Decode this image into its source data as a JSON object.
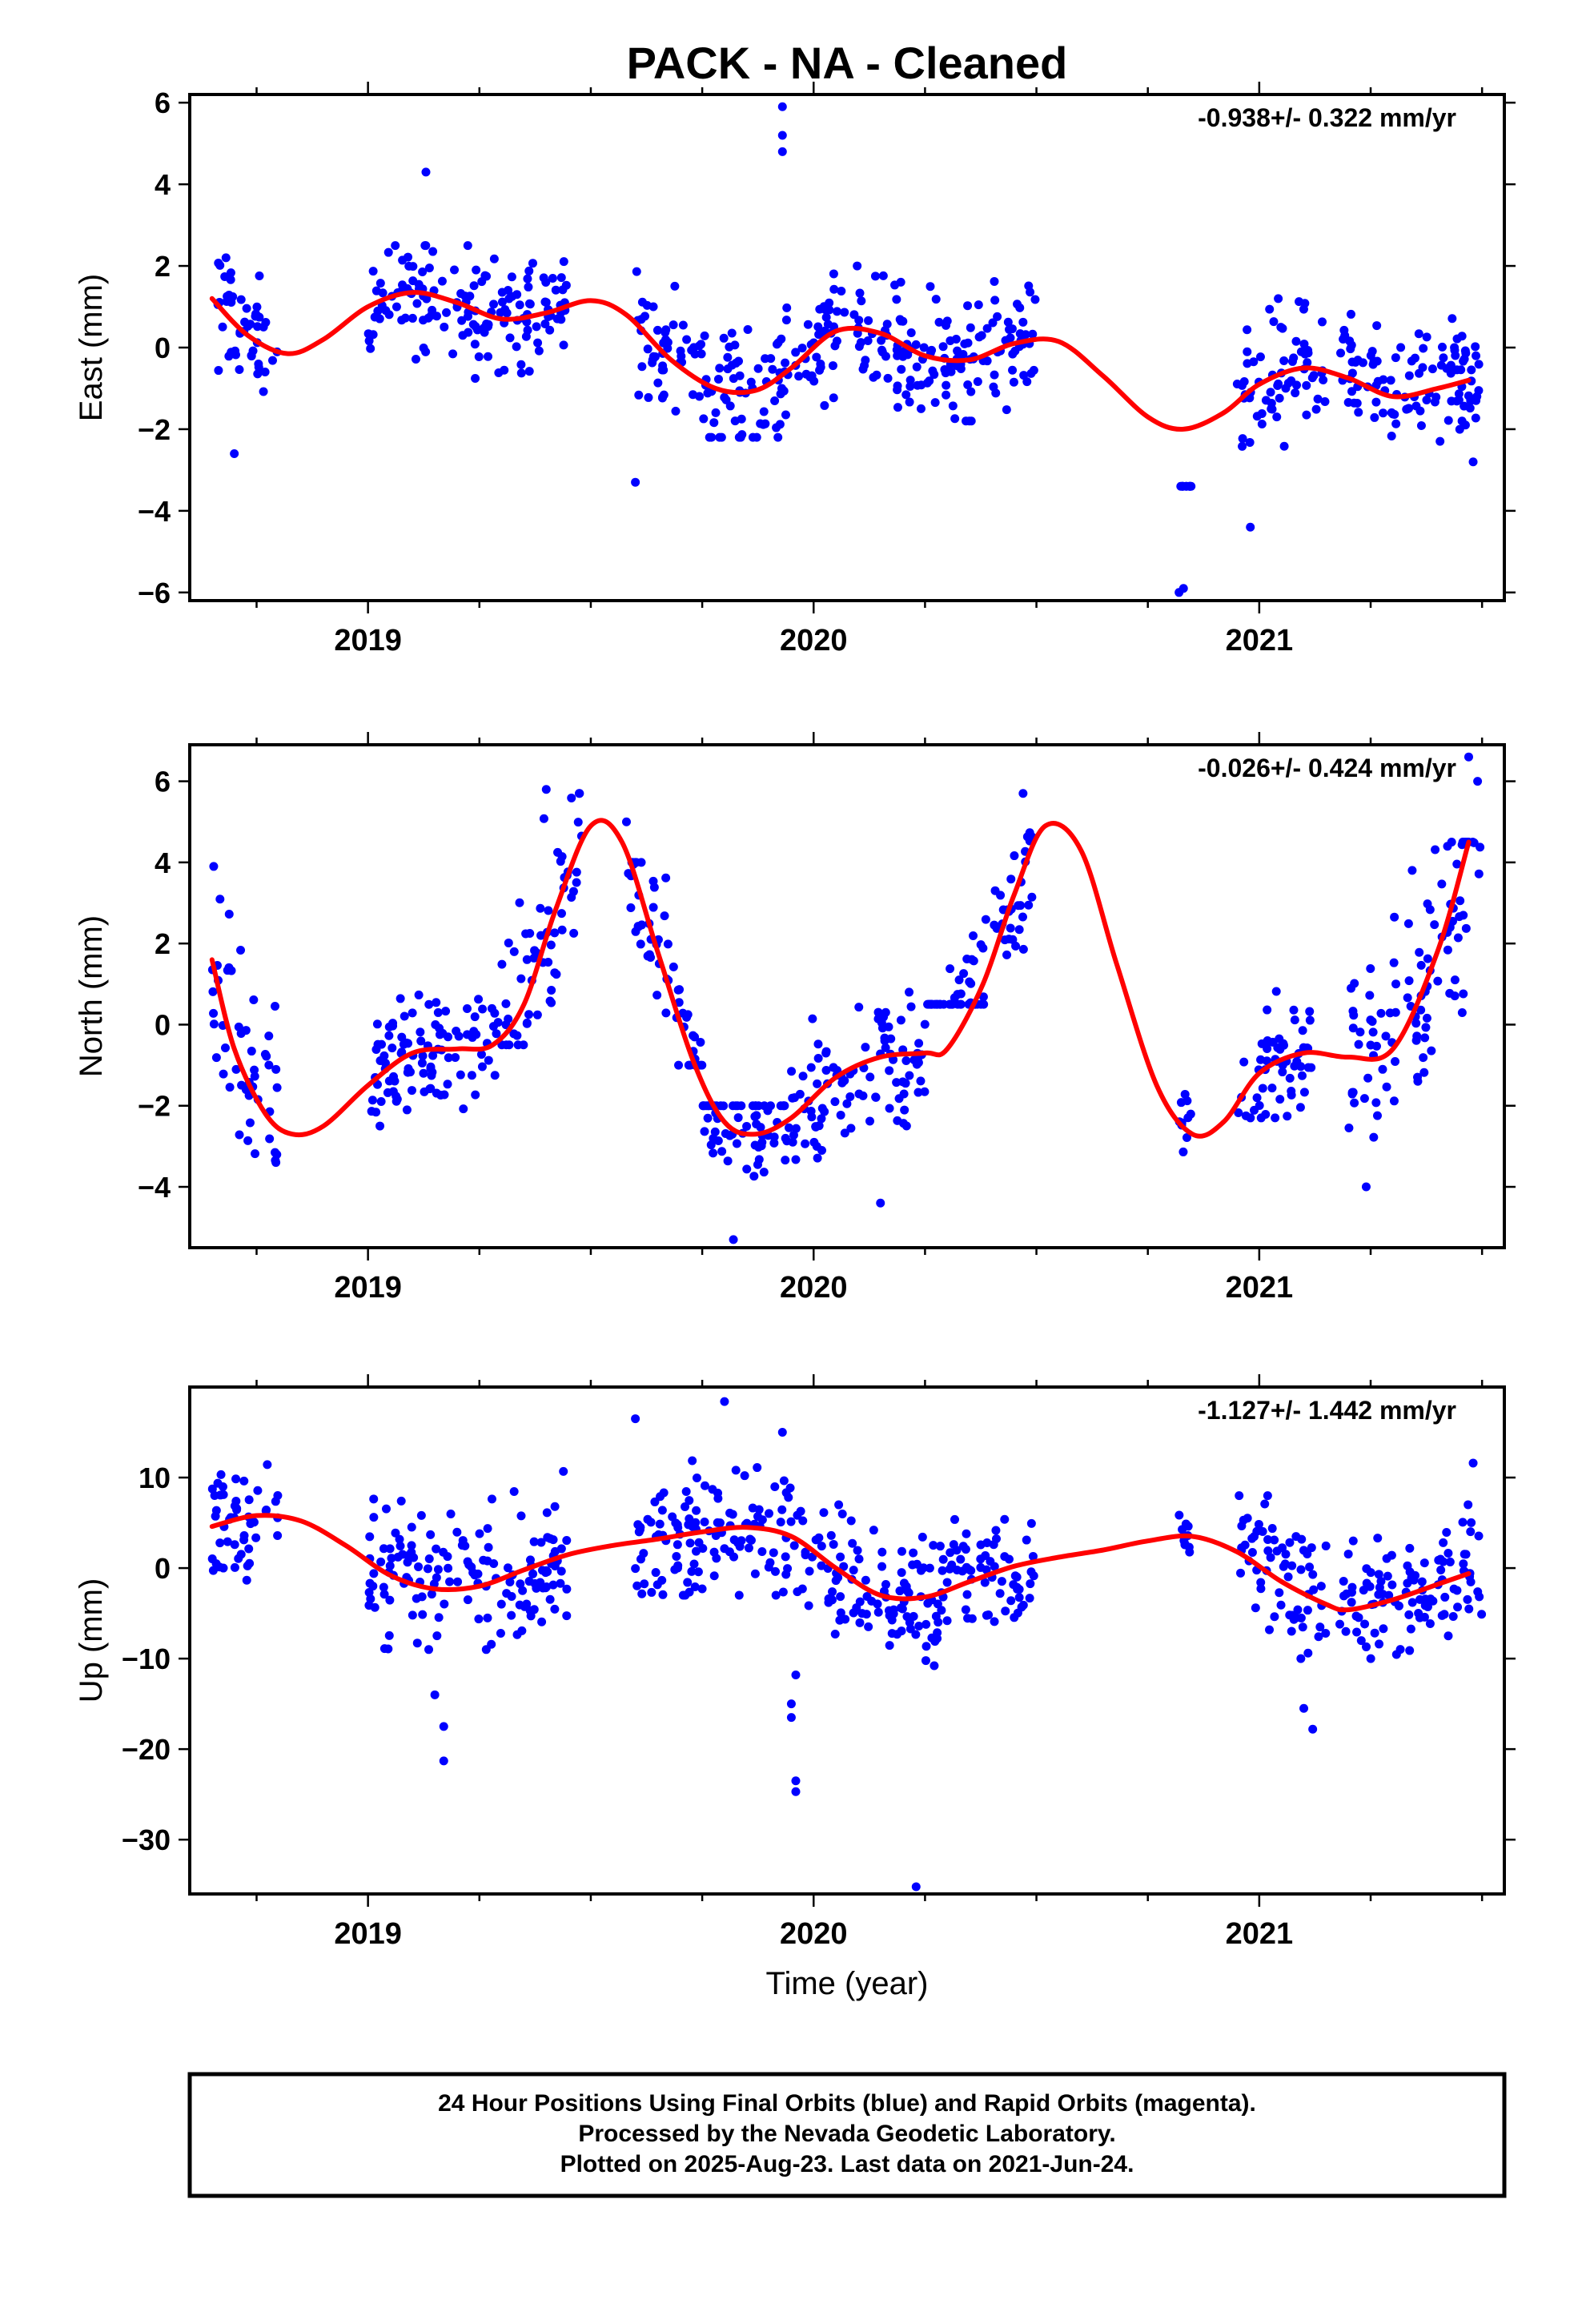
{
  "chart_data": {
    "title": "PACK  - NA - Cleaned",
    "xlabel": "Time (year)",
    "xlim": [
      2018.6,
      2021.55
    ],
    "x_major_ticks": [
      2019,
      2020,
      2021
    ],
    "x_major_labels": [
      "2019",
      "2020",
      "2021"
    ],
    "colors": {
      "final_orbits": "#0000ff",
      "fit": "#ff0000",
      "frame": "#000000"
    },
    "panels": [
      {
        "type": "scatter",
        "ylabel": "East (mm)",
        "ylim": [
          -6.2,
          6.2
        ],
        "yticks": [
          -6,
          -4,
          -2,
          0,
          2,
          4,
          6
        ],
        "ytick_labels": [
          "−6",
          "−4",
          "−2",
          "0",
          "2",
          "4",
          "6"
        ],
        "rate_label": "-0.938+/- 0.322 mm/yr",
        "fit_curve": {
          "x": [
            2018.65,
            2018.73,
            2018.82,
            2018.9,
            2019.0,
            2019.1,
            2019.2,
            2019.3,
            2019.4,
            2019.5,
            2019.58,
            2019.68,
            2019.78,
            2019.87,
            2019.95,
            2020.05,
            2020.15,
            2020.25,
            2020.35,
            2020.45,
            2020.55,
            2020.65,
            2020.75,
            2020.83,
            2020.92,
            2021.0,
            2021.1,
            2021.2,
            2021.3,
            2021.4,
            2021.47
          ],
          "y": [
            1.2,
            0.3,
            -0.15,
            0.2,
            1.0,
            1.35,
            1.1,
            0.7,
            0.85,
            1.15,
            0.8,
            -0.3,
            -1.0,
            -1.05,
            -0.5,
            0.4,
            0.35,
            -0.2,
            -0.3,
            0.1,
            0.15,
            -0.7,
            -1.7,
            -2.0,
            -1.6,
            -0.9,
            -0.5,
            -0.75,
            -1.2,
            -1.0,
            -0.8
          ]
        },
        "clusters": [
          {
            "x0": 2018.65,
            "x1": 2018.8,
            "y0": -1.5,
            "y1": 2.2
          },
          {
            "x0": 2019.0,
            "x1": 2019.45,
            "y0": -1.0,
            "y1": 2.5
          },
          {
            "x0": 2019.6,
            "x1": 2019.95,
            "y0": -2.2,
            "y1": 2.0
          },
          {
            "x0": 2019.95,
            "x1": 2020.5,
            "y0": -1.8,
            "y1": 2.0
          },
          {
            "x0": 2020.82,
            "x1": 2020.85,
            "y0": -4.3,
            "y1": -3.4
          },
          {
            "x0": 2020.95,
            "x1": 2021.15,
            "y0": -3.0,
            "y1": 1.2
          },
          {
            "x0": 2021.18,
            "x1": 2021.5,
            "y0": -2.8,
            "y1": 0.9
          }
        ],
        "outliers": [
          {
            "x": 2019.93,
            "y": 5.9
          },
          {
            "x": 2019.93,
            "y": 5.2
          },
          {
            "x": 2019.93,
            "y": 4.8
          },
          {
            "x": 2019.13,
            "y": 4.3
          },
          {
            "x": 2020.83,
            "y": -5.9
          },
          {
            "x": 2020.82,
            "y": -6.0
          },
          {
            "x": 2019.6,
            "y": -3.3
          },
          {
            "x": 2020.98,
            "y": -4.4
          },
          {
            "x": 2021.48,
            "y": -2.8
          },
          {
            "x": 2018.7,
            "y": -2.6
          }
        ]
      },
      {
        "type": "scatter",
        "ylabel": "North (mm)",
        "ylim": [
          -5.5,
          6.9
        ],
        "yticks": [
          -4,
          -2,
          0,
          2,
          4,
          6
        ],
        "ytick_labels": [
          "−4",
          "−2",
          "0",
          "2",
          "4",
          "6"
        ],
        "rate_label": "-0.026+/- 0.424 mm/yr",
        "fit_curve": {
          "x": [
            2018.65,
            2018.7,
            2018.77,
            2018.83,
            2018.9,
            2019.0,
            2019.1,
            2019.2,
            2019.28,
            2019.35,
            2019.42,
            2019.5,
            2019.57,
            2019.65,
            2019.73,
            2019.8,
            2019.87,
            2019.95,
            2020.05,
            2020.15,
            2020.25,
            2020.3,
            2020.38,
            2020.45,
            2020.52,
            2020.6,
            2020.68,
            2020.77,
            2020.85,
            2020.92,
            2021.0,
            2021.1,
            2021.2,
            2021.3,
            2021.4,
            2021.47
          ],
          "y": [
            1.6,
            -0.6,
            -2.2,
            -2.7,
            -2.5,
            -1.5,
            -0.7,
            -0.6,
            -0.5,
            0.5,
            2.8,
            4.9,
            4.5,
            1.8,
            -0.9,
            -2.4,
            -2.7,
            -2.3,
            -1.3,
            -0.8,
            -0.7,
            -0.6,
            1.0,
            3.2,
            4.9,
            4.3,
            1.5,
            -1.5,
            -2.7,
            -2.4,
            -1.2,
            -0.7,
            -0.8,
            -0.6,
            1.8,
            4.5
          ]
        },
        "clusters": [
          {
            "x0": 2018.65,
            "x1": 2018.8,
            "y0": -3.4,
            "y1": 3.9
          },
          {
            "x0": 2019.0,
            "x1": 2019.3,
            "y0": -2.5,
            "y1": 1.3
          },
          {
            "x0": 2019.3,
            "x1": 2019.48,
            "y0": -0.5,
            "y1": 5.7
          },
          {
            "x0": 2019.58,
            "x1": 2019.75,
            "y0": -1.0,
            "y1": 4.0
          },
          {
            "x0": 2019.75,
            "x1": 2019.95,
            "y0": -5.2,
            "y1": -2.0
          },
          {
            "x0": 2019.95,
            "x1": 2020.25,
            "y0": -4.0,
            "y1": 0.8
          },
          {
            "x0": 2020.25,
            "x1": 2020.5,
            "y0": 0.5,
            "y1": 5.0
          },
          {
            "x0": 2020.82,
            "x1": 2020.85,
            "y0": -3.2,
            "y1": -1.2
          },
          {
            "x0": 2020.95,
            "x1": 2021.12,
            "y0": -2.3,
            "y1": 2.0
          },
          {
            "x0": 2021.2,
            "x1": 2021.5,
            "y0": -2.8,
            "y1": 4.5
          }
        ],
        "outliers": [
          {
            "x": 2021.47,
            "y": 6.6
          },
          {
            "x": 2021.49,
            "y": 6.0
          },
          {
            "x": 2019.4,
            "y": 5.8
          },
          {
            "x": 2019.58,
            "y": 5.0
          },
          {
            "x": 2020.47,
            "y": 5.7
          },
          {
            "x": 2021.24,
            "y": -4.0
          },
          {
            "x": 2020.15,
            "y": -4.4
          },
          {
            "x": 2019.82,
            "y": -5.3
          }
        ]
      },
      {
        "type": "scatter",
        "ylabel": "Up (mm)",
        "ylim": [
          -36,
          20
        ],
        "yticks": [
          -30,
          -20,
          -10,
          0,
          10
        ],
        "ytick_labels": [
          "−30",
          "−20",
          "−10",
          "0",
          "10"
        ],
        "rate_label": "-1.127+/- 1.442 mm/yr",
        "fit_curve": {
          "x": [
            2018.65,
            2018.75,
            2018.85,
            2018.95,
            2019.05,
            2019.15,
            2019.25,
            2019.35,
            2019.45,
            2019.55,
            2019.65,
            2019.75,
            2019.85,
            2019.95,
            2020.05,
            2020.15,
            2020.25,
            2020.35,
            2020.45,
            2020.55,
            2020.65,
            2020.75,
            2020.85,
            2020.95,
            2021.05,
            2021.15,
            2021.2,
            2021.3,
            2021.4,
            2021.47
          ],
          "y": [
            4.6,
            5.8,
            5.2,
            2.5,
            -0.8,
            -2.3,
            -2.0,
            -0.2,
            1.5,
            2.5,
            3.2,
            4.0,
            4.5,
            3.5,
            0.0,
            -3.0,
            -3.2,
            -1.5,
            0.2,
            1.2,
            2.0,
            3.0,
            3.5,
            1.8,
            -1.5,
            -4.0,
            -4.6,
            -3.5,
            -1.8,
            -0.6
          ]
        },
        "clusters": [
          {
            "x0": 2018.65,
            "x1": 2018.8,
            "y0": -4.0,
            "y1": 15.0
          },
          {
            "x0": 2019.0,
            "x1": 2019.45,
            "y0": -9.0,
            "y1": 11.0
          },
          {
            "x0": 2019.6,
            "x1": 2019.98,
            "y0": -3.0,
            "y1": 16.0
          },
          {
            "x0": 2019.98,
            "x1": 2020.5,
            "y0": -11.0,
            "y1": 7.0
          },
          {
            "x0": 2020.82,
            "x1": 2020.85,
            "y0": 0.0,
            "y1": 10.0
          },
          {
            "x0": 2020.95,
            "x1": 2021.15,
            "y0": -10.0,
            "y1": 8.0
          },
          {
            "x0": 2021.18,
            "x1": 2021.5,
            "y0": -10.0,
            "y1": 7.0
          }
        ],
        "outliers": [
          {
            "x": 2019.8,
            "y": 18.4
          },
          {
            "x": 2019.6,
            "y": 16.5
          },
          {
            "x": 2019.93,
            "y": 15.0
          },
          {
            "x": 2021.48,
            "y": 11.6
          },
          {
            "x": 2019.17,
            "y": -21.3
          },
          {
            "x": 2019.17,
            "y": -17.5
          },
          {
            "x": 2019.15,
            "y": -14.0
          },
          {
            "x": 2019.96,
            "y": -11.8
          },
          {
            "x": 2019.95,
            "y": -15.0
          },
          {
            "x": 2019.95,
            "y": -16.5
          },
          {
            "x": 2019.96,
            "y": -23.5
          },
          {
            "x": 2019.96,
            "y": -24.7
          },
          {
            "x": 2020.23,
            "y": -35.2
          },
          {
            "x": 2021.12,
            "y": -17.8
          },
          {
            "x": 2021.1,
            "y": -15.5
          }
        ]
      }
    ]
  },
  "footer": {
    "line1": "24 Hour Positions Using Final Orbits (blue) and Rapid Orbits (magenta).",
    "line2": "Processed by the Nevada Geodetic Laboratory.",
    "line3": "Plotted on 2025-Aug-23. Last data on 2021-Jun-24."
  }
}
